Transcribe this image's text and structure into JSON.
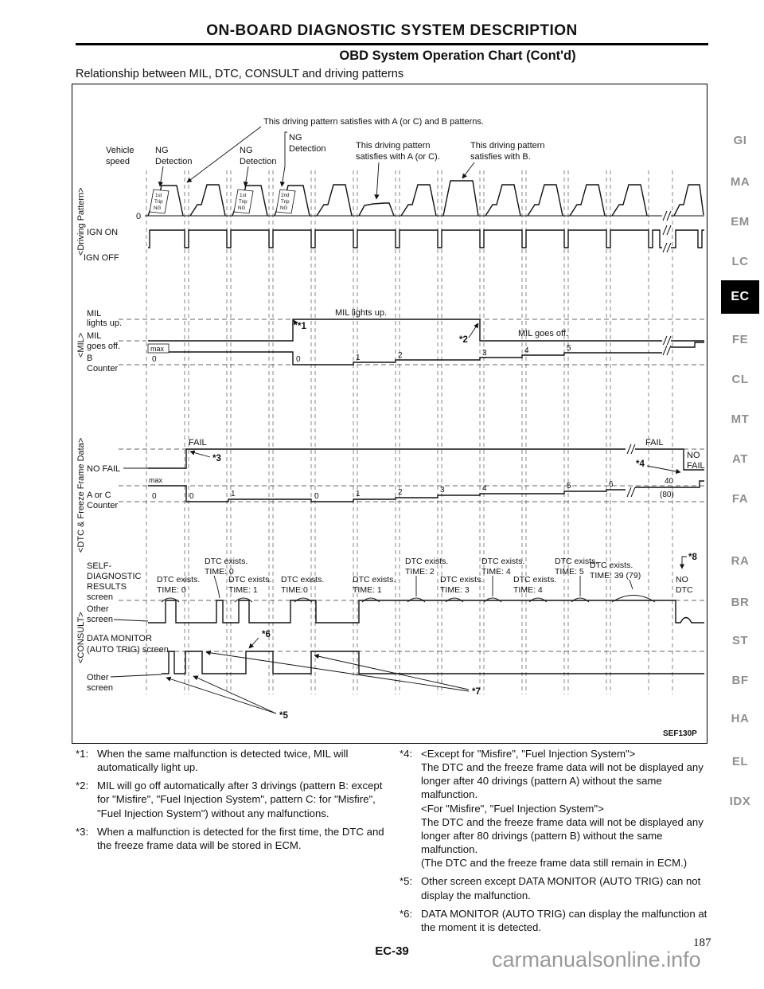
{
  "page": {
    "header_title": "ON-BOARD DIAGNOSTIC SYSTEM DESCRIPTION",
    "subtitle": "OBD System Operation Chart (Cont'd)",
    "section_heading": "Relationship between MIL, DTC, CONSULT and driving patterns",
    "figure_code": "SEF130P",
    "page_code": "EC-39",
    "page_number": "187",
    "watermark": "carmanualsonline.info"
  },
  "sidebar": {
    "active": "EC",
    "tabs": [
      "GI",
      "MA",
      "EM",
      "LC",
      "EC",
      "FE",
      "CL",
      "MT",
      "AT",
      "FA",
      "RA",
      "BR",
      "ST",
      "BF",
      "HA",
      "EL",
      "IDX"
    ]
  },
  "diagram": {
    "sections": {
      "driving": "<Driving Pattern>",
      "mil": "<MIL>",
      "dtc": "<DTC & Freeze Frame Data>",
      "consult": "<CONSULT>"
    },
    "top": {
      "callout_ab": "This driving pattern satisfies with A (or C) and B patterns.",
      "vehicle1": "Vehicle",
      "vehicle2": "speed",
      "ng1a": "NG",
      "ng1b": "Detection",
      "ng2a": "NG",
      "ng2b": "Detection",
      "ng3a": "NG",
      "ng3b": "Detection",
      "cal_a1": "This driving pattern",
      "cal_a2": "satisfies with A (or C).",
      "cal_b1": "This driving pattern",
      "cal_b2": "satisfies with B.",
      "zero": "0",
      "ign_on": "IGN ON",
      "ign_off": "IGN OFF",
      "t1a": "1st",
      "t1b": "Trip",
      "t1c": "NG",
      "t2a": "1st",
      "t2b": "Trip",
      "t2c": "NG",
      "t3a": "2nd",
      "t3b": "Trip",
      "t3c": "NG"
    },
    "mil": {
      "l1": "MIL",
      "l2": "lights up.",
      "l3": "MIL",
      "l4": "goes off.",
      "b1": "B",
      "b2": "Counter",
      "max": "max",
      "lights_up": "MIL lights up.",
      "goes_off": "MIL goes off.",
      "s1": "*1",
      "s2": "*2",
      "bvals": [
        "0",
        "0",
        "1",
        "2",
        "3",
        "4",
        "5"
      ]
    },
    "dtc": {
      "fail_l": "FAIL",
      "no_fail": "NO FAIL",
      "s3": "*3",
      "s4": "*4",
      "fail_r": "FAIL",
      "no_r": "NO",
      "fail_r2": "FAIL",
      "max": "max",
      "aorc1": "A or C",
      "aorc2": "Counter",
      "acvals": [
        "0",
        "0",
        "1",
        "0",
        "1",
        "2",
        "3",
        "4",
        "5",
        "6",
        "40",
        "(80)"
      ]
    },
    "consult": {
      "self1": "SELF-",
      "self2": "DIAGNOSTIC",
      "self3": "RESULTS",
      "self4": "screen",
      "oth1": "Other",
      "oth2": "screen",
      "dm1": "DATA MONITOR",
      "dm2": "(AUTO TRIG) screen",
      "oth3": "Other",
      "oth4": "screen",
      "s5": "*5",
      "s6": "*6",
      "s7": "*7",
      "s8": "*8",
      "no1": "NO",
      "no2": "DTC",
      "dtc_labels": [
        {
          "a": "DTC exists.",
          "b": "TIME: 0"
        },
        {
          "a": "DTC exists.",
          "b": "TIME: 0"
        },
        {
          "a": "DTC exists.",
          "b": "TIME: 1"
        },
        {
          "a": "DTC exists.",
          "b": "TIME:0"
        },
        {
          "a": "DTC exists.",
          "b": "TIME: 1"
        },
        {
          "a": "DTC exists.",
          "b": "TIME: 2"
        },
        {
          "a": "DTC exists.",
          "b": "TIME: 3"
        },
        {
          "a": "DTC exists.",
          "b": "TIME: 4"
        },
        {
          "a": "DTC exists.",
          "b": "TIME: 4"
        },
        {
          "a": "DTC exists.",
          "b": "TIME: 5"
        },
        {
          "a": "DTC exists.",
          "b": "TIME: 39 (79)"
        }
      ]
    }
  },
  "footnotes": {
    "left": [
      {
        "marker": "*1:",
        "text": "When the same malfunction is detected twice, MIL will automatically light up."
      },
      {
        "marker": "*2:",
        "text": "MIL will go off automatically after 3 drivings (pattern B: except for \"Misfire\", \"Fuel Injection System\", pattern C: for \"Misfire\", \"Fuel Injection System\") without any malfunctions."
      },
      {
        "marker": "*3:",
        "text": "When a malfunction is detected for the first time, the DTC and the freeze frame data will be stored in ECM."
      }
    ],
    "right": [
      {
        "marker": "*4:",
        "text": "<Except for \"Misfire\", \"Fuel Injection System\">\nThe DTC and the freeze frame data will not be displayed any longer after 40 drivings (pattern A) without the same malfunction.\n<For \"Misfire\", \"Fuel Injection System\">\nThe DTC and the freeze frame data will not be displayed any longer after 80 drivings (pattern B) without the same malfunction.\n(The DTC and the freeze frame data still remain in ECM.)"
      },
      {
        "marker": "*5:",
        "text": "Other screen except DATA MONITOR (AUTO TRIG) can not display the malfunction."
      },
      {
        "marker": "*6:",
        "text": "DATA MONITOR (AUTO TRIG) can display the malfunction at the moment it is detected."
      }
    ]
  }
}
